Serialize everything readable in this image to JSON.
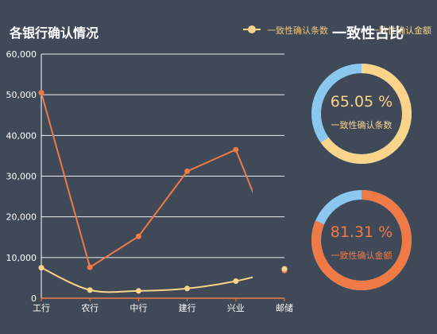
{
  "title": "各银行确认情况",
  "ratio_title": "一致性占比",
  "legend": [
    {
      "label": "一致性确认条数",
      "color": "#f9d48a"
    },
    {
      "label": "一致性确认金额",
      "color": "#f07a45"
    }
  ],
  "chart_data": {
    "type": "line",
    "categories": [
      "工行",
      "农行",
      "中行",
      "建行",
      "兴业",
      "邮储"
    ],
    "ylim": [
      0,
      60000
    ],
    "yticks": [
      "0",
      "10,000",
      "20,000",
      "30,000",
      "40,000",
      "50,000",
      "60,000"
    ],
    "series": [
      {
        "name": "一致性确认金额",
        "color": "#f07a45",
        "smooth": false,
        "values": [
          50500,
          7600,
          15200,
          31200,
          36500,
          6800
        ]
      },
      {
        "name": "一致性确认条数",
        "color": "#f9d48a",
        "smooth": true,
        "values": [
          7500,
          2000,
          1800,
          2400,
          4200,
          7200
        ]
      }
    ]
  },
  "donuts": [
    {
      "percent_text": "65.05 %",
      "percent": 65.05,
      "label": "一致性确认条数",
      "main_color": "#f9d48a",
      "rest_color": "#8bc8f0",
      "text_color": "#f9d48a"
    },
    {
      "percent_text": "81.31 %",
      "percent": 81.31,
      "label": "一致性确认金额",
      "main_color": "#f07a45",
      "rest_color": "#8bc8f0",
      "text_color": "#f07a45"
    }
  ]
}
